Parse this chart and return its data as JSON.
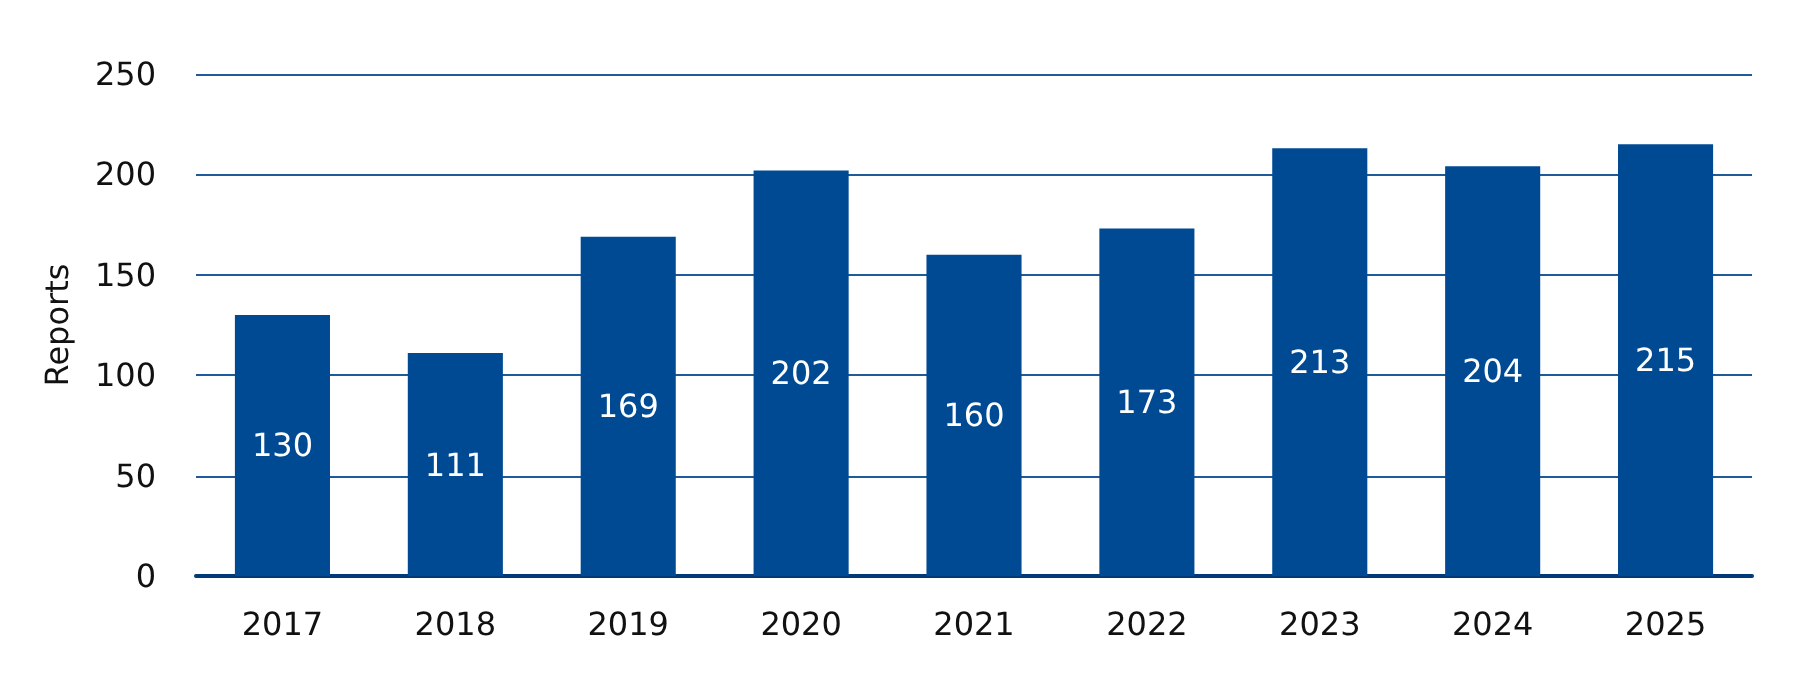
{
  "chart_data": {
    "type": "bar",
    "ylabel": "Reports",
    "categories": [
      "2017",
      "2018",
      "2019",
      "2020",
      "2021",
      "2022",
      "2023",
      "2024",
      "2025"
    ],
    "values": [
      130,
      111,
      169,
      202,
      160,
      173,
      213,
      204,
      215
    ],
    "color": "#004a93",
    "ylim": [
      0,
      250
    ],
    "yticks": [
      0,
      50,
      100,
      150,
      200,
      250
    ],
    "grid": "y",
    "data_labels": true
  }
}
